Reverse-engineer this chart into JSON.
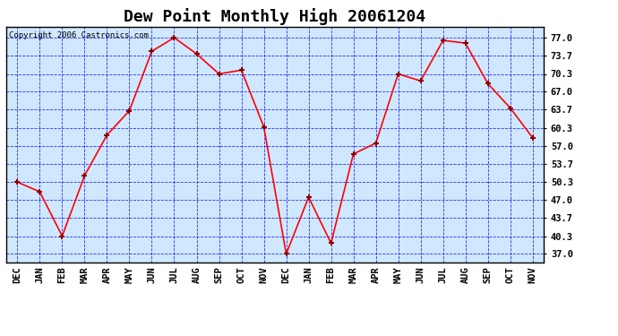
{
  "title": "Dew Point Monthly High 20061204",
  "copyright": "Copyright 2006 Castronics.com",
  "x_labels": [
    "DEC",
    "JAN",
    "FEB",
    "MAR",
    "APR",
    "MAY",
    "JUN",
    "JUL",
    "AUG",
    "SEP",
    "OCT",
    "NOV",
    "DEC",
    "JAN",
    "FEB",
    "MAR",
    "APR",
    "MAY",
    "JUN",
    "JUL",
    "AUG",
    "SEP",
    "OCT",
    "NOV"
  ],
  "y_values": [
    50.3,
    48.5,
    40.3,
    51.5,
    59.0,
    63.5,
    74.5,
    77.0,
    74.0,
    70.3,
    71.0,
    60.5,
    37.0,
    47.5,
    39.0,
    55.5,
    57.5,
    70.3,
    69.0,
    76.5,
    76.0,
    68.5,
    64.0,
    58.5
  ],
  "y_ticks": [
    37.0,
    40.3,
    43.7,
    47.0,
    50.3,
    53.7,
    57.0,
    60.3,
    63.7,
    67.0,
    70.3,
    73.7,
    77.0
  ],
  "line_color": "red",
  "marker_color": "darkred",
  "bg_color": "#d0e8ff",
  "grid_color": "blue",
  "title_fontsize": 13,
  "axis_label_fontsize": 7.5,
  "copyright_fontsize": 6.5
}
